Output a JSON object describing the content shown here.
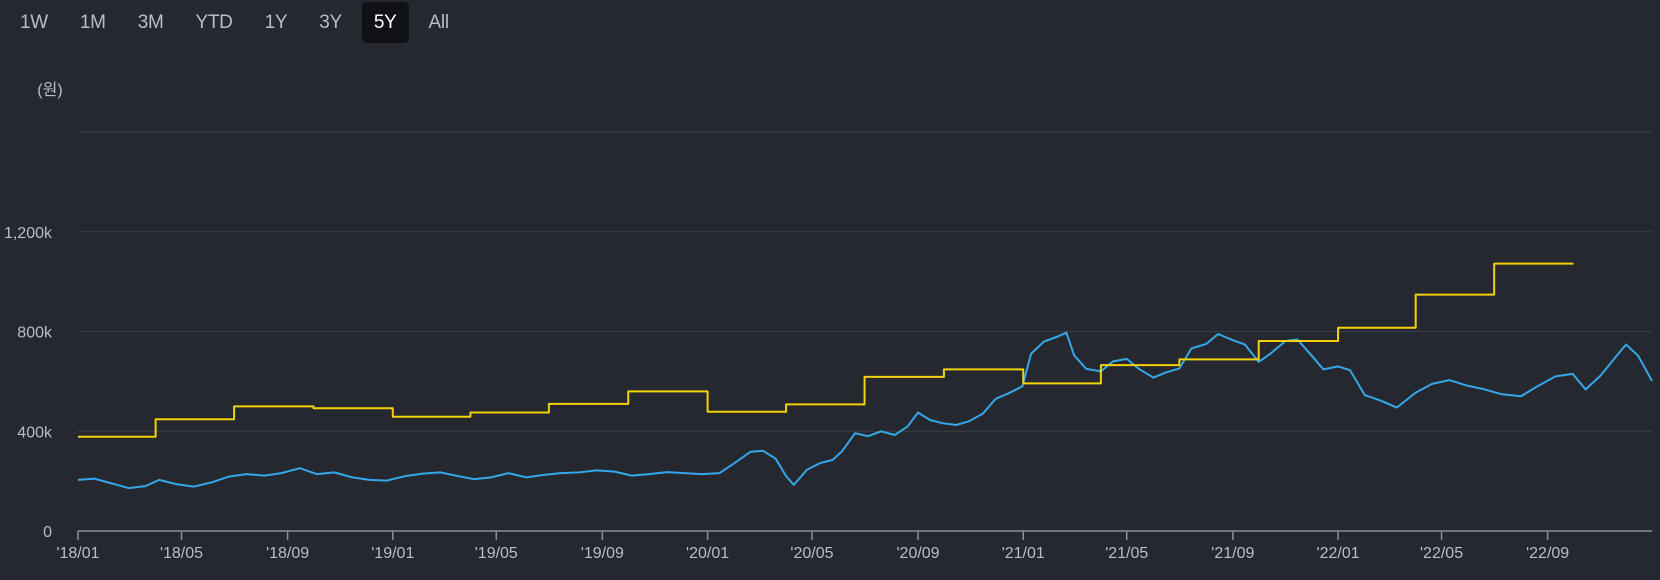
{
  "range_tabs": [
    {
      "label": "1W"
    },
    {
      "label": "1M"
    },
    {
      "label": "3M"
    },
    {
      "label": "YTD"
    },
    {
      "label": "1Y"
    },
    {
      "label": "3Y"
    },
    {
      "label": "5Y",
      "active": true
    },
    {
      "label": "All"
    }
  ],
  "colors": {
    "background": "#25282e",
    "price_line": "#34a7ea",
    "step_line": "#f3d20c",
    "grid": "#3a3e46",
    "axis": "#8a9099",
    "label": "#b9bec6"
  },
  "chart_data": {
    "type": "line",
    "title": "",
    "unit_label": "(원)",
    "xlabel": "",
    "ylabel": "",
    "ylim": [
      0,
      1600000
    ],
    "xlim": [
      "2018-01-01",
      "2022-12-31"
    ],
    "y_ticks": [
      {
        "value": 0,
        "label": "0"
      },
      {
        "value": 400000,
        "label": "400k"
      },
      {
        "value": 800000,
        "label": "800k"
      },
      {
        "value": 1200000,
        "label": "1,200k"
      },
      {
        "value": 1600000,
        "label": ""
      }
    ],
    "x_ticks": [
      {
        "date": "2018-01-01",
        "label": "'18/01"
      },
      {
        "date": "2018-05-01",
        "label": "'18/05"
      },
      {
        "date": "2018-09-01",
        "label": "'18/09"
      },
      {
        "date": "2019-01-01",
        "label": "'19/01"
      },
      {
        "date": "2019-05-01",
        "label": "'19/05"
      },
      {
        "date": "2019-09-01",
        "label": "'19/09"
      },
      {
        "date": "2020-01-01",
        "label": "'20/01"
      },
      {
        "date": "2020-05-01",
        "label": "'20/05"
      },
      {
        "date": "2020-09-01",
        "label": "'20/09"
      },
      {
        "date": "2021-01-01",
        "label": "'21/01"
      },
      {
        "date": "2021-05-01",
        "label": "'21/05"
      },
      {
        "date": "2021-09-01",
        "label": "'21/09"
      },
      {
        "date": "2022-01-01",
        "label": "'22/01"
      },
      {
        "date": "2022-05-01",
        "label": "'22/05"
      },
      {
        "date": "2022-09-01",
        "label": "'22/09"
      }
    ],
    "grid": true,
    "legend": "none",
    "series": [
      {
        "type": "line",
        "color": "#34a7ea",
        "points": [
          [
            "2018-01-01",
            205000
          ],
          [
            "2018-01-20",
            210000
          ],
          [
            "2018-02-10",
            190000
          ],
          [
            "2018-03-01",
            172000
          ],
          [
            "2018-03-20",
            180000
          ],
          [
            "2018-04-05",
            205000
          ],
          [
            "2018-04-25",
            188000
          ],
          [
            "2018-05-15",
            178000
          ],
          [
            "2018-06-05",
            195000
          ],
          [
            "2018-06-25",
            218000
          ],
          [
            "2018-07-15",
            228000
          ],
          [
            "2018-08-05",
            222000
          ],
          [
            "2018-08-25",
            232000
          ],
          [
            "2018-09-15",
            252000
          ],
          [
            "2018-10-05",
            228000
          ],
          [
            "2018-10-25",
            235000
          ],
          [
            "2018-11-15",
            215000
          ],
          [
            "2018-12-05",
            205000
          ],
          [
            "2018-12-25",
            202000
          ],
          [
            "2019-01-15",
            220000
          ],
          [
            "2019-02-05",
            230000
          ],
          [
            "2019-02-25",
            235000
          ],
          [
            "2019-03-15",
            222000
          ],
          [
            "2019-04-05",
            208000
          ],
          [
            "2019-04-25",
            215000
          ],
          [
            "2019-05-15",
            232000
          ],
          [
            "2019-06-05",
            215000
          ],
          [
            "2019-06-25",
            225000
          ],
          [
            "2019-07-15",
            232000
          ],
          [
            "2019-08-05",
            235000
          ],
          [
            "2019-08-25",
            243000
          ],
          [
            "2019-09-15",
            238000
          ],
          [
            "2019-10-05",
            222000
          ],
          [
            "2019-10-25",
            228000
          ],
          [
            "2019-11-15",
            236000
          ],
          [
            "2019-12-05",
            232000
          ],
          [
            "2019-12-25",
            228000
          ],
          [
            "2020-01-15",
            232000
          ],
          [
            "2020-02-01",
            272000
          ],
          [
            "2020-02-20",
            318000
          ],
          [
            "2020-03-05",
            322000
          ],
          [
            "2020-03-20",
            290000
          ],
          [
            "2020-04-01",
            220000
          ],
          [
            "2020-04-10",
            185000
          ],
          [
            "2020-04-25",
            245000
          ],
          [
            "2020-05-10",
            272000
          ],
          [
            "2020-05-25",
            285000
          ],
          [
            "2020-06-05",
            320000
          ],
          [
            "2020-06-20",
            392000
          ],
          [
            "2020-07-05",
            380000
          ],
          [
            "2020-07-20",
            400000
          ],
          [
            "2020-08-05",
            385000
          ],
          [
            "2020-08-20",
            420000
          ],
          [
            "2020-09-01",
            475000
          ],
          [
            "2020-09-15",
            445000
          ],
          [
            "2020-09-30",
            432000
          ],
          [
            "2020-10-15",
            425000
          ],
          [
            "2020-10-30",
            440000
          ],
          [
            "2020-11-15",
            470000
          ],
          [
            "2020-11-30",
            530000
          ],
          [
            "2020-12-15",
            552000
          ],
          [
            "2020-12-31",
            580000
          ],
          [
            "2021-01-10",
            710000
          ],
          [
            "2021-01-25",
            760000
          ],
          [
            "2021-02-10",
            780000
          ],
          [
            "2021-02-20",
            795000
          ],
          [
            "2021-03-01",
            705000
          ],
          [
            "2021-03-15",
            650000
          ],
          [
            "2021-04-01",
            640000
          ],
          [
            "2021-04-15",
            680000
          ],
          [
            "2021-05-01",
            690000
          ],
          [
            "2021-05-15",
            650000
          ],
          [
            "2021-06-01",
            615000
          ],
          [
            "2021-06-15",
            635000
          ],
          [
            "2021-07-01",
            652000
          ],
          [
            "2021-07-15",
            732000
          ],
          [
            "2021-08-01",
            750000
          ],
          [
            "2021-08-15",
            790000
          ],
          [
            "2021-09-01",
            765000
          ],
          [
            "2021-09-15",
            748000
          ],
          [
            "2021-10-01",
            678000
          ],
          [
            "2021-10-15",
            712000
          ],
          [
            "2021-11-01",
            762000
          ],
          [
            "2021-11-15",
            768000
          ],
          [
            "2021-12-01",
            705000
          ],
          [
            "2021-12-15",
            648000
          ],
          [
            "2022-01-01",
            660000
          ],
          [
            "2022-01-15",
            645000
          ],
          [
            "2022-02-01",
            545000
          ],
          [
            "2022-02-20",
            522000
          ],
          [
            "2022-03-10",
            495000
          ],
          [
            "2022-04-01",
            555000
          ],
          [
            "2022-04-20",
            590000
          ],
          [
            "2022-05-10",
            605000
          ],
          [
            "2022-06-01",
            582000
          ],
          [
            "2022-06-20",
            568000
          ],
          [
            "2022-07-10",
            548000
          ],
          [
            "2022-08-01",
            540000
          ],
          [
            "2022-08-20",
            580000
          ],
          [
            "2022-09-10",
            620000
          ],
          [
            "2022-09-30",
            630000
          ],
          [
            "2022-10-15",
            568000
          ],
          [
            "2022-11-01",
            622000
          ],
          [
            "2022-11-20",
            702000
          ],
          [
            "2022-12-01",
            748000
          ],
          [
            "2022-12-15",
            702000
          ],
          [
            "2022-12-31",
            602000
          ]
        ]
      },
      {
        "type": "step",
        "color": "#f3d20c",
        "points": [
          [
            "2018-01-01",
            378000
          ],
          [
            "2018-04-01",
            448000
          ],
          [
            "2018-07-01",
            500000
          ],
          [
            "2018-10-01",
            492000
          ],
          [
            "2019-01-01",
            458000
          ],
          [
            "2019-04-01",
            475000
          ],
          [
            "2019-07-01",
            510000
          ],
          [
            "2019-10-01",
            560000
          ],
          [
            "2020-01-01",
            478000
          ],
          [
            "2020-04-01",
            508000
          ],
          [
            "2020-07-01",
            618000
          ],
          [
            "2020-10-01",
            648000
          ],
          [
            "2021-01-01",
            592000
          ],
          [
            "2021-04-01",
            665000
          ],
          [
            "2021-07-01",
            688000
          ],
          [
            "2021-10-01",
            762000
          ],
          [
            "2022-01-01",
            815000
          ],
          [
            "2022-04-01",
            948000
          ],
          [
            "2022-07-01",
            1072000
          ],
          [
            "2022-10-01",
            1072000
          ]
        ],
        "end": "2022-10-01"
      }
    ]
  }
}
